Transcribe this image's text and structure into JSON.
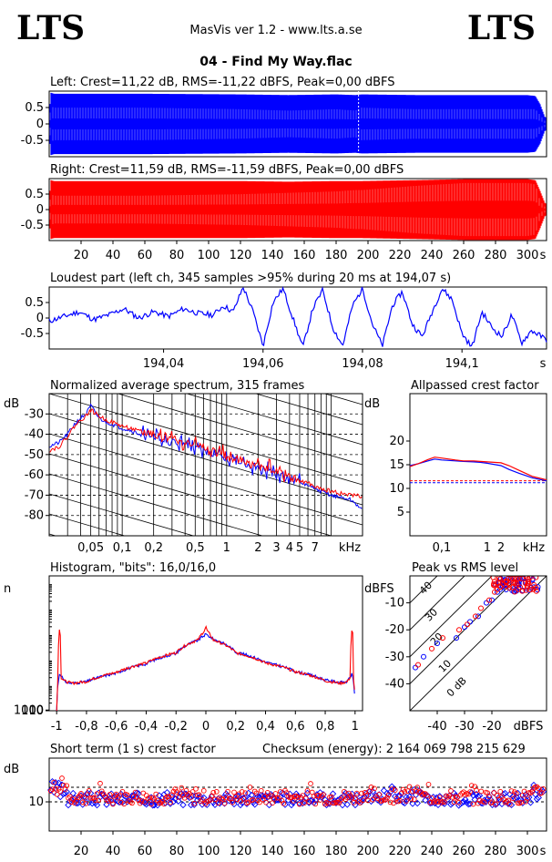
{
  "header": {
    "logo_left": "LTS",
    "logo_right": "LTS",
    "app_title": "MasVis ver 1.2 - www.lts.a.se",
    "file_title": "04 - Find My Way.flac"
  },
  "colors": {
    "left": "#0000ff",
    "right": "#ff0000"
  },
  "chart_data": [
    {
      "id": "left-waveform",
      "type": "area",
      "title": "Left: Crest=11,22 dB, RMS=-11,22 dBFS, Peak=0,00 dBFS",
      "ylim": [
        -1,
        1
      ],
      "xlim": [
        0,
        312
      ],
      "y_ticks": [
        "0.5",
        "0",
        "-0.5"
      ],
      "y_tick_values": [
        0.5,
        0,
        -0.5
      ],
      "marker_x": 194.07,
      "envelope": {
        "x": [
          0,
          1,
          3,
          20,
          60,
          120,
          150,
          180,
          192,
          196,
          230,
          260,
          300,
          305,
          308,
          311
        ],
        "upper": [
          0.15,
          0.95,
          0.92,
          0.92,
          0.92,
          0.9,
          0.88,
          0.9,
          0.88,
          0.9,
          0.88,
          0.88,
          0.88,
          0.85,
          0.6,
          0.2
        ],
        "inner": [
          0.1,
          0.6,
          0.55,
          0.55,
          0.55,
          0.5,
          0.45,
          0.5,
          0.45,
          0.55,
          0.5,
          0.5,
          0.5,
          0.5,
          0.3,
          0.1
        ]
      }
    },
    {
      "id": "right-waveform",
      "type": "area",
      "title": "Right: Crest=11,59 dB, RMS=-11,59 dBFS, Peak=0,00 dBFS",
      "ylim": [
        -1,
        1
      ],
      "xlim": [
        0,
        312
      ],
      "y_ticks": [
        "0.5",
        "0",
        "-0.5"
      ],
      "y_tick_values": [
        0.5,
        0,
        -0.5
      ],
      "x_ticks": [
        "20",
        "40",
        "60",
        "80",
        "100",
        "120",
        "140",
        "160",
        "180",
        "200",
        "220",
        "240",
        "260",
        "280",
        "300",
        "s"
      ],
      "x_tick_values": [
        20,
        40,
        60,
        80,
        100,
        120,
        140,
        160,
        180,
        200,
        220,
        240,
        260,
        280,
        300
      ],
      "envelope": {
        "x": [
          0,
          1,
          3,
          20,
          60,
          120,
          150,
          180,
          192,
          196,
          230,
          260,
          300,
          305,
          308,
          311
        ],
        "upper": [
          0.15,
          0.95,
          0.92,
          0.92,
          0.92,
          0.92,
          0.9,
          0.92,
          0.92,
          0.92,
          0.95,
          0.98,
          0.98,
          0.95,
          0.6,
          0.2
        ],
        "inner": [
          0.1,
          0.55,
          0.5,
          0.5,
          0.5,
          0.55,
          0.6,
          0.65,
          0.7,
          0.7,
          0.85,
          0.95,
          0.95,
          0.9,
          0.3,
          0.1
        ]
      }
    },
    {
      "id": "loudest-part",
      "type": "line",
      "title": "Loudest part (left  ch, 345 samples >95% during 20 ms at 194,07 s)",
      "xlim": [
        194.017,
        194.117
      ],
      "ylim": [
        -1,
        1
      ],
      "y_ticks": [
        "0.5",
        "0",
        "-0.5"
      ],
      "y_tick_values": [
        0.5,
        0,
        -0.5
      ],
      "x_ticks": [
        "194,04",
        "194,06",
        "194,08",
        "194,1",
        "s"
      ],
      "x_tick_values": [
        194.04,
        194.06,
        194.08,
        194.1
      ],
      "x": [
        194.017,
        194.02,
        194.023,
        194.026,
        194.029,
        194.032,
        194.035,
        194.038,
        194.041,
        194.044,
        194.047,
        194.05,
        194.052,
        194.054,
        194.056,
        194.058,
        194.06,
        194.062,
        194.064,
        194.066,
        194.068,
        194.07,
        194.072,
        194.074,
        194.076,
        194.078,
        194.08,
        194.082,
        194.084,
        194.086,
        194.088,
        194.09,
        194.092,
        194.094,
        194.096,
        194.098,
        194.1,
        194.102,
        194.104,
        194.106,
        194.108,
        194.11,
        194.112,
        194.114,
        194.117
      ],
      "y": [
        -0.1,
        0.05,
        0.2,
        -0.05,
        0.1,
        0.3,
        0.0,
        0.2,
        0.05,
        0.3,
        0.15,
        0.1,
        0.4,
        0.2,
        1.0,
        0.2,
        -0.9,
        0.5,
        0.95,
        0.0,
        -0.95,
        0.3,
        0.9,
        -0.3,
        -0.9,
        0.4,
        0.95,
        -0.2,
        -0.9,
        0.4,
        0.85,
        -0.2,
        -0.6,
        0.2,
        0.95,
        0.6,
        -0.5,
        -0.95,
        0.2,
        -0.3,
        -0.6,
        0.1,
        -0.8,
        -0.4,
        -0.7
      ]
    },
    {
      "id": "avg-spectrum",
      "type": "line",
      "title": "Normalized average spectrum, 315 frames",
      "ylabel": "dB",
      "xlabel": "kHz",
      "xscale": "log",
      "xlim": [
        0.02,
        20
      ],
      "ylim": [
        -90,
        -20
      ],
      "y_ticks": [
        "-30",
        "-40",
        "-50",
        "-60",
        "-70",
        "-80"
      ],
      "y_tick_values": [
        -30,
        -40,
        -50,
        -60,
        -70,
        -80
      ],
      "x_ticks": [
        "0,05",
        "0,1",
        "0,2",
        "0,5",
        "1",
        "2",
        "3",
        "4",
        "5",
        "7",
        "kHz"
      ],
      "x_tick_values": [
        0.05,
        0.1,
        0.2,
        0.5,
        1,
        2,
        3,
        4,
        5,
        7
      ],
      "series": [
        {
          "color": "blue",
          "x": [
            0.02,
            0.025,
            0.03,
            0.035,
            0.04,
            0.045,
            0.05,
            0.06,
            0.07,
            0.08,
            0.1,
            0.12,
            0.15,
            0.2,
            0.25,
            0.3,
            0.4,
            0.5,
            0.6,
            0.7,
            0.8,
            1,
            1.2,
            1.5,
            2,
            2.5,
            3,
            4,
            5,
            6,
            7,
            8,
            10,
            12,
            15,
            18,
            20
          ],
          "y": [
            -46,
            -44,
            -40,
            -35,
            -32,
            -30,
            -26,
            -32,
            -34,
            -35,
            -37,
            -38,
            -40,
            -41,
            -42,
            -44,
            -45,
            -46,
            -48,
            -49,
            -50,
            -52,
            -53,
            -55,
            -57,
            -58,
            -60,
            -62,
            -64,
            -65,
            -67,
            -68,
            -70,
            -71,
            -72,
            -75,
            -78
          ]
        },
        {
          "color": "red",
          "x": [
            0.02,
            0.025,
            0.03,
            0.035,
            0.04,
            0.045,
            0.05,
            0.06,
            0.07,
            0.08,
            0.1,
            0.12,
            0.15,
            0.2,
            0.25,
            0.3,
            0.4,
            0.5,
            0.6,
            0.7,
            0.8,
            1,
            1.2,
            1.5,
            2,
            2.5,
            3,
            4,
            5,
            6,
            7,
            8,
            10,
            12,
            15,
            18,
            20
          ],
          "y": [
            -48,
            -46,
            -41,
            -36,
            -33,
            -31,
            -28,
            -31,
            -33,
            -34,
            -36,
            -37,
            -39,
            -40,
            -41,
            -43,
            -44,
            -45,
            -47,
            -48,
            -49,
            -51,
            -52,
            -54,
            -56,
            -57,
            -59,
            -61,
            -63,
            -64,
            -66,
            -67,
            -68,
            -69,
            -70,
            -70,
            -71
          ]
        }
      ]
    },
    {
      "id": "allpassed-crest",
      "type": "line",
      "title": "Allpassed crest factor",
      "ylabel": "dB",
      "xlabel": "kHz",
      "xscale": "log",
      "xlim": [
        0.02,
        20
      ],
      "ylim": [
        0,
        30
      ],
      "y_ticks": [
        "20",
        "15",
        "10",
        "5"
      ],
      "y_tick_values": [
        20,
        15,
        10,
        5
      ],
      "x_ticks": [
        "0,1",
        "1",
        "2",
        "kHz"
      ],
      "x_tick_values": [
        0.1,
        1,
        2
      ],
      "ref_lines": {
        "blue": 11.2,
        "red": 11.6
      },
      "series": [
        {
          "color": "blue",
          "x": [
            0.02,
            0.03,
            0.05,
            0.07,
            0.1,
            0.2,
            0.3,
            0.5,
            0.7,
            1,
            2,
            3,
            5,
            10,
            20
          ],
          "y": [
            14.8,
            15.2,
            15.8,
            16.2,
            16.0,
            15.8,
            15.7,
            15.6,
            15.5,
            15.3,
            14.8,
            14.0,
            13.2,
            12.2,
            11.6
          ]
        },
        {
          "color": "red",
          "x": [
            0.02,
            0.03,
            0.05,
            0.07,
            0.1,
            0.2,
            0.3,
            0.5,
            0.7,
            1,
            2,
            3,
            5,
            10,
            20
          ],
          "y": [
            14.6,
            15.2,
            16.1,
            16.6,
            16.4,
            16.0,
            15.8,
            15.8,
            15.7,
            15.6,
            15.4,
            14.8,
            13.8,
            12.5,
            11.8
          ]
        }
      ]
    },
    {
      "id": "histogram",
      "type": "line",
      "title": "Histogram, \"bits\": 16,0/16,0",
      "ylabel": "n",
      "yscale": "log",
      "xlim": [
        -1.05,
        1.05
      ],
      "ylim": [
        1,
        200000
      ],
      "y_ticks": [
        "1000",
        "100",
        "10"
      ],
      "y_tick_values": [
        1000,
        100,
        10
      ],
      "x_ticks": [
        "-1",
        "-0,8",
        "-0,6",
        "-0,4",
        "-0,2",
        "0",
        "0,2",
        "0,4",
        "0,6",
        "0,8",
        "1"
      ],
      "x_tick_values": [
        -1,
        -0.8,
        -0.6,
        -0.4,
        -0.2,
        0,
        0.2,
        0.4,
        0.6,
        0.8,
        1
      ],
      "series": [
        {
          "color": "blue",
          "x": [
            -1,
            -0.99,
            -0.98,
            -0.95,
            -0.9,
            -0.8,
            -0.6,
            -0.4,
            -0.2,
            -0.05,
            0,
            0.05,
            0.2,
            0.4,
            0.6,
            0.8,
            0.9,
            0.95,
            0.98,
            0.99,
            1
          ],
          "y": [
            1,
            12,
            30,
            14,
            12,
            14,
            30,
            70,
            180,
            600,
            1000,
            650,
            200,
            80,
            35,
            16,
            13,
            14,
            28,
            12,
            1
          ]
        },
        {
          "color": "red",
          "x": [
            -1,
            -0.99,
            -0.98,
            -0.97,
            -0.95,
            -0.9,
            -0.8,
            -0.6,
            -0.4,
            -0.2,
            -0.05,
            -0.01,
            0,
            0.01,
            0.05,
            0.2,
            0.4,
            0.6,
            0.8,
            0.9,
            0.95,
            0.97,
            0.98,
            0.99,
            1
          ],
          "y": [
            1,
            15,
            1800,
            20,
            15,
            12,
            14,
            32,
            75,
            190,
            620,
            1400,
            2000,
            1300,
            600,
            190,
            75,
            34,
            15,
            12,
            14,
            22,
            1800,
            15,
            1
          ]
        }
      ]
    },
    {
      "id": "peak-vs-rms",
      "type": "scatter",
      "title": "Peak vs RMS level",
      "ylabel": "dBFS",
      "xlabel": "dBFS",
      "xlim": [
        -50,
        0
      ],
      "ylim": [
        -50,
        0
      ],
      "y_ticks": [
        "-10",
        "-20",
        "-30",
        "-40"
      ],
      "y_tick_values": [
        -10,
        -20,
        -30,
        -40
      ],
      "x_ticks": [
        "-40",
        "-30",
        "-20",
        "dBFS"
      ],
      "x_tick_values": [
        -40,
        -30,
        -20
      ],
      "crest_lines": [
        "40",
        "30",
        "20",
        "10",
        "0 dB"
      ],
      "crest_values": [
        40,
        30,
        20,
        10,
        0
      ],
      "series": [
        {
          "color": "blue",
          "x": [
            -48,
            -45,
            -40,
            -33,
            -30,
            -28,
            -25,
            -22,
            -20,
            -18,
            -17,
            -16,
            -15,
            -14,
            -13,
            -12,
            -11,
            -10
          ],
          "y": [
            -34,
            -30,
            -25,
            -23,
            -19,
            -17,
            -15,
            -10,
            -9,
            -6,
            -5,
            -4,
            -3,
            -2,
            -2,
            -1,
            -1,
            -1
          ]
        },
        {
          "color": "red",
          "x": [
            -47,
            -42,
            -38,
            -32,
            -29,
            -26,
            -24,
            -21,
            -19,
            -18,
            -17,
            -16,
            -15,
            -14,
            -13,
            -12,
            -11,
            -10,
            -9
          ],
          "y": [
            -33,
            -27,
            -23,
            -20,
            -18,
            -15,
            -12,
            -9,
            -6,
            -5,
            -4,
            -3,
            -2,
            -1,
            -1,
            -1,
            -1,
            -1,
            -1
          ]
        }
      ]
    },
    {
      "id": "short-term-crest",
      "type": "scatter",
      "title": "Short term (1 s) crest factor",
      "annotation": "Checksum (energy):  2 164 069 798 215 629",
      "ylabel": "dB",
      "xlim": [
        0,
        312
      ],
      "ylim": [
        0,
        25
      ],
      "y_ticks": [
        "10"
      ],
      "y_tick_values": [
        10
      ],
      "ref_lines": [
        10,
        15
      ],
      "x_ticks": [
        "20",
        "40",
        "60",
        "80",
        "100",
        "120",
        "140",
        "160",
        "180",
        "200",
        "220",
        "240",
        "260",
        "280",
        "300",
        "s"
      ],
      "x_tick_values": [
        20,
        40,
        60,
        80,
        100,
        120,
        140,
        160,
        180,
        200,
        220,
        240,
        260,
        280,
        300
      ],
      "series": [
        {
          "color": "blue",
          "seed": 3,
          "base": 11.0,
          "spread": 2.2
        },
        {
          "color": "red",
          "seed": 7,
          "base": 11.6,
          "spread": 2.4
        }
      ]
    }
  ]
}
